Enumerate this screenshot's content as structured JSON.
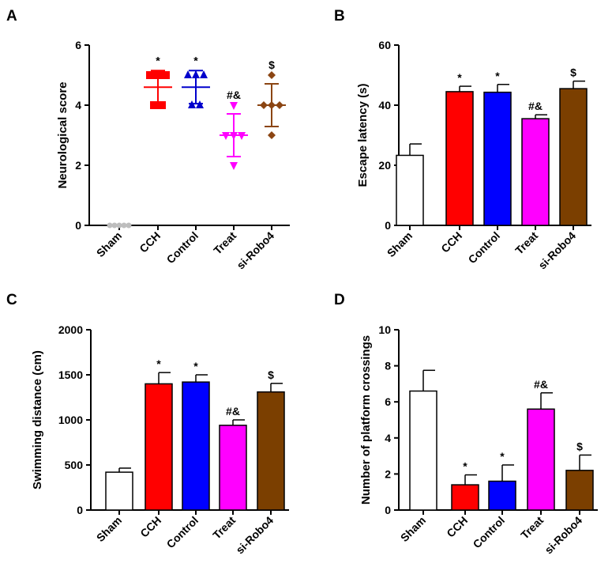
{
  "chart_data": [
    {
      "id": "A",
      "panel_label": "A",
      "type": "scatter",
      "ylabel": "Neurological score",
      "ylim": [
        0,
        6
      ],
      "yticks": [
        0,
        2,
        4,
        6
      ],
      "categories": [
        "Sham",
        "CCH",
        "Control",
        "Treat",
        "si-Robo4"
      ],
      "colors": [
        "#bdbdbd",
        "#ff0000",
        "#0000cc",
        "#ff00ff",
        "#8b4513"
      ],
      "markers": [
        "circle",
        "square",
        "triangle-up",
        "triangle-down",
        "diamond"
      ],
      "points": [
        [
          0,
          0,
          0,
          0,
          0
        ],
        [
          5,
          5,
          5,
          4,
          4
        ],
        [
          5,
          5,
          5,
          4,
          4
        ],
        [
          4,
          3,
          3,
          3,
          2
        ],
        [
          5,
          4,
          4,
          4,
          3
        ]
      ],
      "means": [
        0,
        4.6,
        4.6,
        3.0,
        4.0
      ],
      "errors": [
        0,
        0.55,
        0.55,
        0.71,
        0.71
      ],
      "significance": [
        "",
        "*",
        "*",
        "#&",
        "$"
      ]
    },
    {
      "id": "B",
      "panel_label": "B",
      "type": "bar",
      "ylabel": "Escape latency (s)",
      "ylim": [
        0,
        60
      ],
      "yticks": [
        0,
        20,
        40,
        60
      ],
      "categories": [
        "Sham",
        "CCH",
        "Control",
        "Treat",
        "si-Robo4"
      ],
      "colors": [
        "#ffffff",
        "#ff0000",
        "#0000ff",
        "#ff00ff",
        "#7b3f00"
      ],
      "values": [
        23.3,
        44.5,
        44.3,
        35.5,
        45.5
      ],
      "errors": [
        3.8,
        1.8,
        2.6,
        1.3,
        2.5
      ],
      "significance": [
        "",
        "*",
        "*",
        "#&",
        "$"
      ]
    },
    {
      "id": "C",
      "panel_label": "C",
      "type": "bar",
      "ylabel": "Swimming distance (cm)",
      "ylim": [
        0,
        2000
      ],
      "yticks": [
        0,
        500,
        1000,
        1500,
        2000
      ],
      "categories": [
        "Sham",
        "CCH",
        "Control",
        "Treat",
        "si-Robo4"
      ],
      "colors": [
        "#ffffff",
        "#ff0000",
        "#0000ff",
        "#ff00ff",
        "#7b3f00"
      ],
      "values": [
        420,
        1400,
        1420,
        940,
        1310
      ],
      "errors": [
        45,
        125,
        80,
        60,
        95
      ],
      "significance": [
        "",
        "*",
        "*",
        "#&",
        "$"
      ]
    },
    {
      "id": "D",
      "panel_label": "D",
      "type": "bar",
      "ylabel": "Number of platform crossings",
      "ylim": [
        0,
        10
      ],
      "yticks": [
        0,
        2,
        4,
        6,
        8,
        10
      ],
      "categories": [
        "Sham",
        "CCH",
        "Control",
        "Treat",
        "si-Robo4"
      ],
      "colors": [
        "#ffffff",
        "#ff0000",
        "#0000ff",
        "#ff00ff",
        "#7b3f00"
      ],
      "values": [
        6.6,
        1.4,
        1.6,
        5.6,
        2.2
      ],
      "errors": [
        1.15,
        0.55,
        0.9,
        0.9,
        0.85
      ],
      "significance": [
        "",
        "*",
        "*",
        "#&",
        "$"
      ]
    }
  ]
}
